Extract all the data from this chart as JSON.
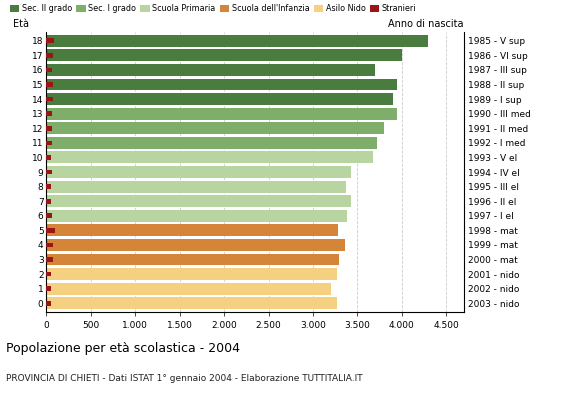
{
  "ages": [
    18,
    17,
    16,
    15,
    14,
    13,
    12,
    11,
    10,
    9,
    8,
    7,
    6,
    5,
    4,
    3,
    2,
    1,
    0
  ],
  "years": [
    "1985 - V sup",
    "1986 - VI sup",
    "1987 - III sup",
    "1988 - II sup",
    "1989 - I sup",
    "1990 - III med",
    "1991 - II med",
    "1992 - I med",
    "1993 - V el",
    "1994 - IV el",
    "1995 - III el",
    "1996 - II el",
    "1997 - I el",
    "1998 - mat",
    "1999 - mat",
    "2000 - mat",
    "2001 - nido",
    "2002 - nido",
    "2003 - nido"
  ],
  "bar_values": [
    4300,
    4000,
    3700,
    3950,
    3900,
    3950,
    3800,
    3720,
    3680,
    3430,
    3370,
    3430,
    3380,
    3280,
    3360,
    3290,
    3270,
    3200,
    3270
  ],
  "stranieri_values": [
    80,
    75,
    65,
    70,
    70,
    65,
    65,
    65,
    55,
    60,
    55,
    55,
    60,
    100,
    75,
    70,
    55,
    55,
    55
  ],
  "colors": {
    "sec2": "#4a7c3f",
    "sec1": "#7fad6a",
    "primaria": "#b8d4a0",
    "infanzia": "#d4853a",
    "nido": "#f5d080",
    "stranieri": "#9b1515"
  },
  "school_ranges": {
    "sec2": [
      14,
      18
    ],
    "sec1": [
      11,
      13
    ],
    "primaria": [
      6,
      10
    ],
    "infanzia": [
      3,
      5
    ],
    "nido": [
      0,
      2
    ]
  },
  "legend_labels": [
    "Sec. II grado",
    "Sec. I grado",
    "Scuola Primaria",
    "Scuola dell'Infanzia",
    "Asilo Nido",
    "Stranieri"
  ],
  "title": "Popolazione per età scolastica - 2004",
  "subtitle": "PROVINCIA DI CHIETI - Dati ISTAT 1° gennaio 2004 - Elaborazione TUTTITALIA.IT",
  "ylabel_left": "Età",
  "ylabel_right": "Anno di nascita",
  "xlabel_ticks": [
    0,
    500,
    1000,
    1500,
    2000,
    2500,
    3000,
    3500,
    4000,
    4500
  ],
  "xlabel_labels": [
    "0",
    "500",
    "1.000",
    "1.500",
    "2.000",
    "2.500",
    "3.000",
    "3.500",
    "4.000",
    "4.500"
  ],
  "xlim": [
    0,
    4700
  ],
  "background_color": "#ffffff",
  "grid_color": "#cccccc"
}
